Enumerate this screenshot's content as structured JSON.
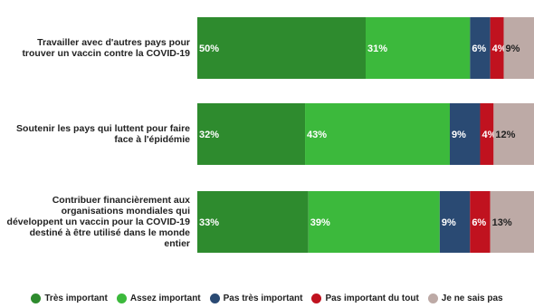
{
  "chart_data": {
    "type": "bar",
    "orientation": "horizontal",
    "stacked": true,
    "categories": [
      "Travailler avec d'autres pays pour trouver un vaccin contre la COVID-19",
      "Soutenir les pays qui luttent pour faire face à l'épidémie",
      "Contribuer financièrement aux organisations mondiales qui développent un vaccin pour la COVID-19 destiné à être utilisé dans le monde entier"
    ],
    "series": [
      {
        "name": "Très important",
        "color": "#2e8b2e",
        "values": [
          50,
          32,
          33
        ],
        "labels": [
          "50%",
          "32%",
          "33%"
        ]
      },
      {
        "name": "Assez important",
        "color": "#3cb93c",
        "values": [
          31,
          43,
          39
        ],
        "labels": [
          "31%",
          "43%",
          "39%"
        ]
      },
      {
        "name": "Pas très important",
        "color": "#2a4a73",
        "values": [
          6,
          9,
          9
        ],
        "labels": [
          "6%",
          "9%",
          "9%"
        ]
      },
      {
        "name": "Pas important du tout",
        "color": "#c0121f",
        "values": [
          4,
          4,
          6
        ],
        "labels": [
          "4%",
          "4%",
          "6%"
        ]
      },
      {
        "name": "Je ne sais pas",
        "color": "#bdaaa6",
        "values": [
          9,
          12,
          13
        ],
        "labels": [
          "9%",
          "12%",
          "13%"
        ]
      }
    ],
    "xlim": [
      0,
      100
    ],
    "legend_position": "bottom",
    "grid": false
  }
}
